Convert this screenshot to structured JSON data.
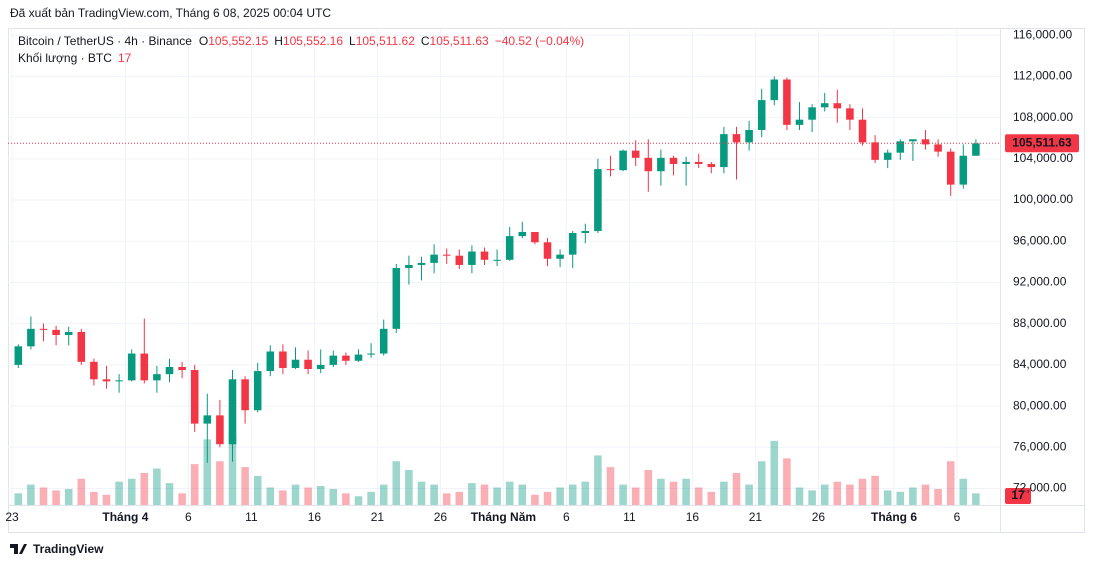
{
  "published": "Đã xuất bản TradingView.com, Tháng 6 08, 2025 00:04 UTC",
  "logo": "TradingView",
  "chart_data": {
    "type": "candlestick",
    "title": "Bitcoin / TetherUS · 4h · Binance",
    "ohlc_header": [
      {
        "key": "O",
        "value": "105,552.15"
      },
      {
        "key": "H",
        "value": "105,552.16"
      },
      {
        "key": "L",
        "value": "105,511.62"
      },
      {
        "key": "C",
        "value": "105,511.63"
      }
    ],
    "change": "−40.52 (−0.04%)",
    "volume_title": "Khối lượng · BTC",
    "volume_last": 17,
    "up_color": "#089981",
    "down_color": "#f23645",
    "price_line": {
      "value": 105511.63,
      "label": "105,511.63",
      "color": "#f23645"
    },
    "x": [
      "2025-03-23",
      "2025-03-24",
      "2025-03-25",
      "2025-03-26",
      "2025-03-27",
      "2025-03-28",
      "2025-03-29",
      "2025-03-30",
      "2025-03-31",
      "2025-04-01",
      "2025-04-02",
      "2025-04-03",
      "2025-04-04",
      "2025-04-05",
      "2025-04-06",
      "2025-04-07",
      "2025-04-08",
      "2025-04-09",
      "2025-04-10",
      "2025-04-11",
      "2025-04-12",
      "2025-04-13",
      "2025-04-14",
      "2025-04-15",
      "2025-04-16",
      "2025-04-17",
      "2025-04-18",
      "2025-04-19",
      "2025-04-20",
      "2025-04-21",
      "2025-04-22",
      "2025-04-23",
      "2025-04-24",
      "2025-04-25",
      "2025-04-26",
      "2025-04-27",
      "2025-04-28",
      "2025-04-29",
      "2025-04-30",
      "2025-05-01",
      "2025-05-02",
      "2025-05-03",
      "2025-05-04",
      "2025-05-05",
      "2025-05-06",
      "2025-05-07",
      "2025-05-08",
      "2025-05-09",
      "2025-05-10",
      "2025-05-11",
      "2025-05-12",
      "2025-05-13",
      "2025-05-14",
      "2025-05-15",
      "2025-05-16",
      "2025-05-17",
      "2025-05-18",
      "2025-05-19",
      "2025-05-20",
      "2025-05-21",
      "2025-05-22",
      "2025-05-23",
      "2025-05-24",
      "2025-05-25",
      "2025-05-26",
      "2025-05-27",
      "2025-05-28",
      "2025-05-29",
      "2025-05-30",
      "2025-05-31",
      "2025-06-01",
      "2025-06-02",
      "2025-06-03",
      "2025-06-04",
      "2025-06-05",
      "2025-06-06",
      "2025-06-07"
    ],
    "open": [
      84000,
      85800,
      87500,
      87400,
      86900,
      87200,
      84300,
      82600,
      82400,
      82500,
      85100,
      82500,
      83100,
      83800,
      83500,
      78300,
      79100,
      76300,
      82600,
      79600,
      83400,
      85300,
      83700,
      84500,
      83600,
      84000,
      84900,
      84400,
      85000,
      85100,
      87500,
      93400,
      93700,
      93900,
      94700,
      94600,
      93700,
      95000,
      94200,
      94200,
      96500,
      96900,
      95900,
      94300,
      94700,
      96800,
      97000,
      103000,
      102900,
      104800,
      104100,
      102800,
      104100,
      103500,
      103700,
      103500,
      103200,
      106400,
      105600,
      106800,
      109700,
      111700,
      107300,
      107800,
      109000,
      109400,
      108900,
      107800,
      105600,
      103900,
      104600,
      105700,
      105900,
      105400,
      104700,
      101500,
      104300
    ],
    "high": [
      86000,
      88700,
      88000,
      87800,
      87700,
      87500,
      84600,
      83900,
      83100,
      85500,
      88500,
      83900,
      84600,
      84300,
      84000,
      81200,
      80600,
      83500,
      82900,
      84200,
      85900,
      86000,
      85700,
      85400,
      85500,
      85400,
      85200,
      85500,
      86100,
      88400,
      93800,
      94600,
      94500,
      95700,
      95300,
      95200,
      95600,
      95400,
      95200,
      97400,
      97900,
      96900,
      96300,
      95200,
      97000,
      97700,
      104000,
      104300,
      104900,
      105800,
      105900,
      104900,
      104300,
      104200,
      104500,
      103700,
      107100,
      107100,
      107700,
      110800,
      112000,
      111900,
      109500,
      109300,
      110400,
      110700,
      109300,
      108900,
      106300,
      104900,
      105900,
      105900,
      106800,
      105900,
      105000,
      105400,
      105900
    ],
    "low": [
      83700,
      85500,
      86300,
      85900,
      85900,
      84000,
      82000,
      81700,
      81300,
      82400,
      82200,
      81300,
      82300,
      82700,
      77500,
      74500,
      76000,
      74600,
      78300,
      79400,
      82900,
      83100,
      83600,
      83100,
      83200,
      83800,
      84000,
      84300,
      84700,
      84900,
      87100,
      91800,
      92200,
      92900,
      93800,
      93300,
      92900,
      93700,
      93600,
      94100,
      96300,
      95700,
      93600,
      93500,
      93400,
      95800,
      96800,
      102300,
      102800,
      103300,
      100800,
      101400,
      102400,
      101400,
      103100,
      102600,
      102600,
      102000,
      104800,
      106100,
      109200,
      106800,
      106800,
      106600,
      108600,
      107500,
      106800,
      105300,
      103600,
      103100,
      103900,
      103800,
      104900,
      104200,
      100400,
      101100,
      104300
    ],
    "close": [
      85800,
      87500,
      87400,
      86900,
      87200,
      84300,
      82600,
      82400,
      82500,
      85100,
      82500,
      83100,
      83800,
      83500,
      78300,
      79100,
      76300,
      82600,
      79600,
      83400,
      85300,
      83700,
      84500,
      83600,
      84000,
      84900,
      84400,
      85000,
      85100,
      87500,
      93400,
      93700,
      93900,
      94700,
      94600,
      93700,
      95000,
      94200,
      94200,
      96500,
      96900,
      95900,
      94300,
      94700,
      96800,
      97000,
      103000,
      102900,
      104800,
      104100,
      102800,
      104100,
      103500,
      103700,
      103500,
      103200,
      106400,
      105600,
      106800,
      109700,
      111700,
      107300,
      107800,
      109000,
      109400,
      108900,
      107800,
      105600,
      103900,
      104600,
      105700,
      105900,
      105400,
      104700,
      101500,
      104300,
      105500
    ],
    "volume": [
      8,
      14,
      12,
      10,
      11,
      18,
      9,
      7,
      16,
      18,
      22,
      25,
      15,
      8,
      28,
      45,
      30,
      48,
      26,
      20,
      12,
      10,
      14,
      12,
      13,
      11,
      8,
      6,
      9,
      14,
      30,
      24,
      16,
      14,
      8,
      9,
      15,
      14,
      12,
      16,
      14,
      7,
      9,
      12,
      14,
      16,
      34,
      26,
      14,
      12,
      24,
      18,
      16,
      18,
      12,
      9,
      16,
      22,
      14,
      30,
      44,
      32,
      12,
      10,
      14,
      16,
      14,
      18,
      20,
      10,
      9,
      12,
      14,
      11,
      30,
      18,
      8
    ],
    "ylim": [
      70400,
      116700
    ],
    "yticks": [
      {
        "value": 72000,
        "label": "72,000.00"
      },
      {
        "value": 76000,
        "label": "76,000.00"
      },
      {
        "value": 80000,
        "label": "80,000.00"
      },
      {
        "value": 84000,
        "label": "84,000.00"
      },
      {
        "value": 88000,
        "label": "88,000.00"
      },
      {
        "value": 92000,
        "label": "92,000.00"
      },
      {
        "value": 96000,
        "label": "96,000.00"
      },
      {
        "value": 100000,
        "label": "100,000.00"
      },
      {
        "value": 104000,
        "label": "104,000.00"
      },
      {
        "value": 108000,
        "label": "108,000.00"
      },
      {
        "value": 112000,
        "label": "112,000.00"
      },
      {
        "value": 116000,
        "label": "116,000.00"
      }
    ],
    "xticks": [
      {
        "value": "2025-03-23",
        "label": "23"
      },
      {
        "value": "2025-04-01",
        "label": "Tháng 4"
      },
      {
        "value": "2025-04-06",
        "label": "6"
      },
      {
        "value": "2025-04-11",
        "label": "11"
      },
      {
        "value": "2025-04-16",
        "label": "16"
      },
      {
        "value": "2025-04-21",
        "label": "21"
      },
      {
        "value": "2025-04-26",
        "label": "26"
      },
      {
        "value": "2025-05-01",
        "label": "Tháng Năm"
      },
      {
        "value": "2025-05-06",
        "label": "6"
      },
      {
        "value": "2025-05-11",
        "label": "11"
      },
      {
        "value": "2025-05-16",
        "label": "16"
      },
      {
        "value": "2025-05-21",
        "label": "21"
      },
      {
        "value": "2025-05-26",
        "label": "26"
      },
      {
        "value": "2025-06-01",
        "label": "Tháng 6"
      },
      {
        "value": "2025-06-06",
        "label": "6"
      }
    ],
    "grid": true
  }
}
